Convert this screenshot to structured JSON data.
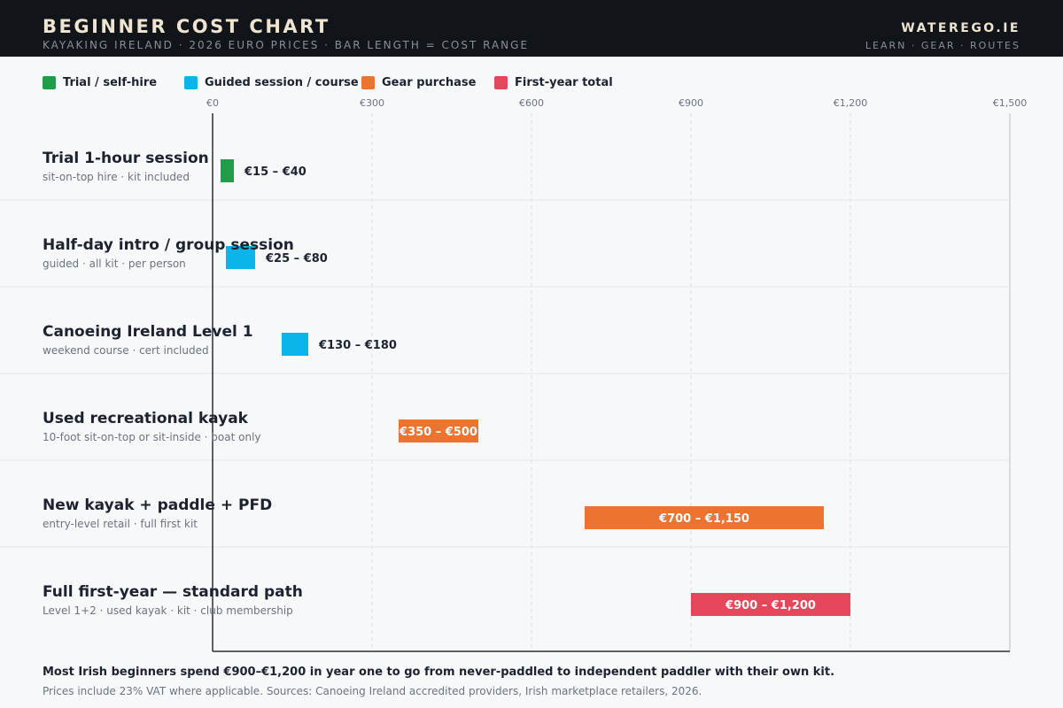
{
  "header": {
    "title": "BEGINNER COST CHART",
    "subtitle": "KAYAKING IRELAND · 2026 EURO PRICES · BAR LENGTH = COST RANGE",
    "brand": "WATEREGO.IE",
    "brand_sub": "LEARN · GEAR · ROUTES"
  },
  "legend": [
    {
      "label": "Trial / self-hire",
      "color": "#1f9e4a"
    },
    {
      "label": "Guided session / course",
      "color": "#0bb5ea"
    },
    {
      "label": "Gear purchase",
      "color": "#ec7330"
    },
    {
      "label": "First-year total",
      "color": "#e5475a"
    }
  ],
  "chart_data": {
    "type": "bar",
    "orientation": "horizontal-range",
    "title": "BEGINNER COST CHART",
    "xlim": [
      0,
      1500
    ],
    "xticks": [
      0,
      300,
      600,
      900,
      1200,
      1500
    ],
    "xtick_labels": [
      "€0",
      "€300",
      "€600",
      "€900",
      "€1,200",
      "€1,500"
    ],
    "grid": true,
    "legend_position": "top-left",
    "rows": [
      {
        "label": "Trial 1-hour session",
        "sub": "sit-on-top hire · kit included",
        "min": 15,
        "max": 40,
        "range_label": "€15 – €40",
        "category": "Trial / self-hire",
        "color": "#1f9e4a"
      },
      {
        "label": "Half-day intro / group session",
        "sub": "guided · all kit · per person",
        "min": 25,
        "max": 80,
        "range_label": "€25 – €80",
        "category": "Guided session / course",
        "color": "#0bb5ea"
      },
      {
        "label": "Canoeing Ireland Level 1",
        "sub": "weekend course · cert included",
        "min": 130,
        "max": 180,
        "range_label": "€130 – €180",
        "category": "Guided session / course",
        "color": "#0bb5ea"
      },
      {
        "label": "Used recreational kayak",
        "sub": "10-foot sit-on-top or sit-inside · boat only",
        "min": 350,
        "max": 500,
        "range_label": "€350 – €500",
        "category": "Gear purchase",
        "color": "#ec7330"
      },
      {
        "label": "New kayak + paddle + PFD",
        "sub": "entry-level retail · full first kit",
        "min": 700,
        "max": 1150,
        "range_label": "€700 – €1,150",
        "category": "Gear purchase",
        "color": "#ec7330"
      },
      {
        "label": "Full first-year — standard path",
        "sub": "Level 1+2 · used kayak · kit · club membership",
        "min": 900,
        "max": 1200,
        "range_label": "€900 – €1,200",
        "category": "First-year total",
        "color": "#e5475a"
      }
    ]
  },
  "footer": {
    "summary": "Most Irish beginners spend €900–€1,200 in year one to go from never-paddled to independent paddler with their own kit.",
    "source": "Prices include 23% VAT where applicable. Sources: Canoeing Ireland accredited providers, Irish marketplace retailers, 2026."
  }
}
